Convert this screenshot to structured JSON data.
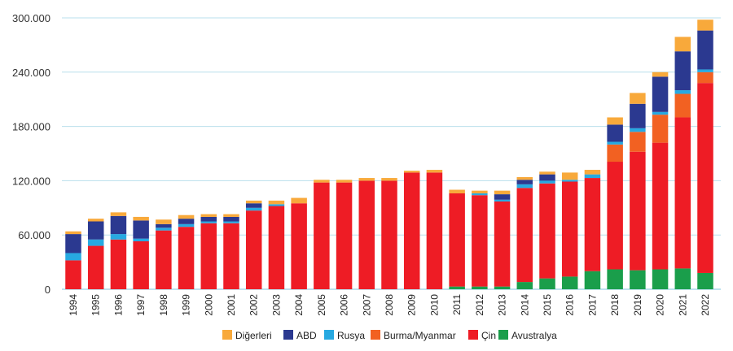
{
  "chart_data": {
    "type": "bar",
    "stacked": true,
    "title": "",
    "xlabel": "",
    "ylabel": "",
    "ylim": [
      0,
      300000
    ],
    "y_ticks": [
      0,
      60000,
      120000,
      180000,
      240000,
      300000
    ],
    "y_tick_labels": [
      "0",
      "60.000",
      "120.000",
      "180.000",
      "240.000",
      "300.000"
    ],
    "grid": "horizontal",
    "legend_position": "bottom",
    "categories": [
      "1994",
      "1995",
      "1996",
      "1997",
      "1998",
      "1999",
      "2000",
      "2001",
      "2002",
      "2003",
      "2004",
      "2005",
      "2006",
      "2007",
      "2008",
      "2009",
      "2010",
      "2011",
      "2012",
      "2013",
      "2014",
      "2015",
      "2016",
      "2017",
      "2018",
      "2019",
      "2020",
      "2021",
      "2022"
    ],
    "series": [
      {
        "name": "Avustralya",
        "color": "#1a9e4b",
        "values": [
          0,
          0,
          0,
          0,
          0,
          0,
          0,
          0,
          0,
          0,
          0,
          0,
          0,
          0,
          0,
          0,
          0,
          3000,
          3000,
          3000,
          8000,
          12000,
          14000,
          20000,
          22000,
          21000,
          22000,
          23000,
          18000
        ]
      },
      {
        "name": "Çin",
        "color": "#ee1c25",
        "values": [
          32000,
          48000,
          55000,
          53000,
          65000,
          69000,
          73000,
          73000,
          87000,
          92000,
          95000,
          118000,
          118000,
          120000,
          120000,
          129000,
          129000,
          103000,
          101000,
          94000,
          104000,
          105000,
          105000,
          103000,
          119000,
          131000,
          140000,
          167000,
          210000
        ]
      },
      {
        "name": "Burma/Myanmar",
        "color": "#f26122",
        "values": [
          0,
          0,
          0,
          0,
          0,
          0,
          0,
          0,
          0,
          0,
          0,
          0,
          0,
          0,
          0,
          0,
          0,
          0,
          0,
          0,
          0,
          0,
          0,
          0,
          19000,
          22000,
          31000,
          26000,
          12000
        ]
      },
      {
        "name": "Rusya",
        "color": "#27a9e1",
        "values": [
          8000,
          7000,
          6000,
          3000,
          3000,
          3000,
          2000,
          2000,
          3000,
          2000,
          0,
          0,
          0,
          0,
          0,
          0,
          0,
          0,
          2000,
          2000,
          4000,
          3000,
          2000,
          4000,
          3000,
          4000,
          3000,
          4000,
          3000
        ]
      },
      {
        "name": "ABD",
        "color": "#2b3990",
        "values": [
          21000,
          20000,
          20000,
          20000,
          4000,
          6000,
          5000,
          5000,
          5000,
          0,
          0,
          0,
          0,
          0,
          0,
          0,
          0,
          0,
          0,
          6000,
          5000,
          7000,
          0,
          0,
          19000,
          27000,
          39000,
          43000,
          43000
        ]
      },
      {
        "name": "Diğerleri",
        "color": "#f8a93b",
        "values": [
          3000,
          3000,
          4000,
          4000,
          5000,
          4000,
          3000,
          3000,
          3000,
          4000,
          6000,
          3000,
          3000,
          3000,
          3000,
          2000,
          3000,
          4000,
          3000,
          4000,
          3000,
          3000,
          8000,
          5000,
          8000,
          12000,
          5000,
          16000,
          12000
        ]
      }
    ],
    "legend_order": [
      "Diğerleri",
      "ABD",
      "Rusya",
      "Burma/Myanmar",
      "Çin",
      "Avustralya"
    ]
  }
}
